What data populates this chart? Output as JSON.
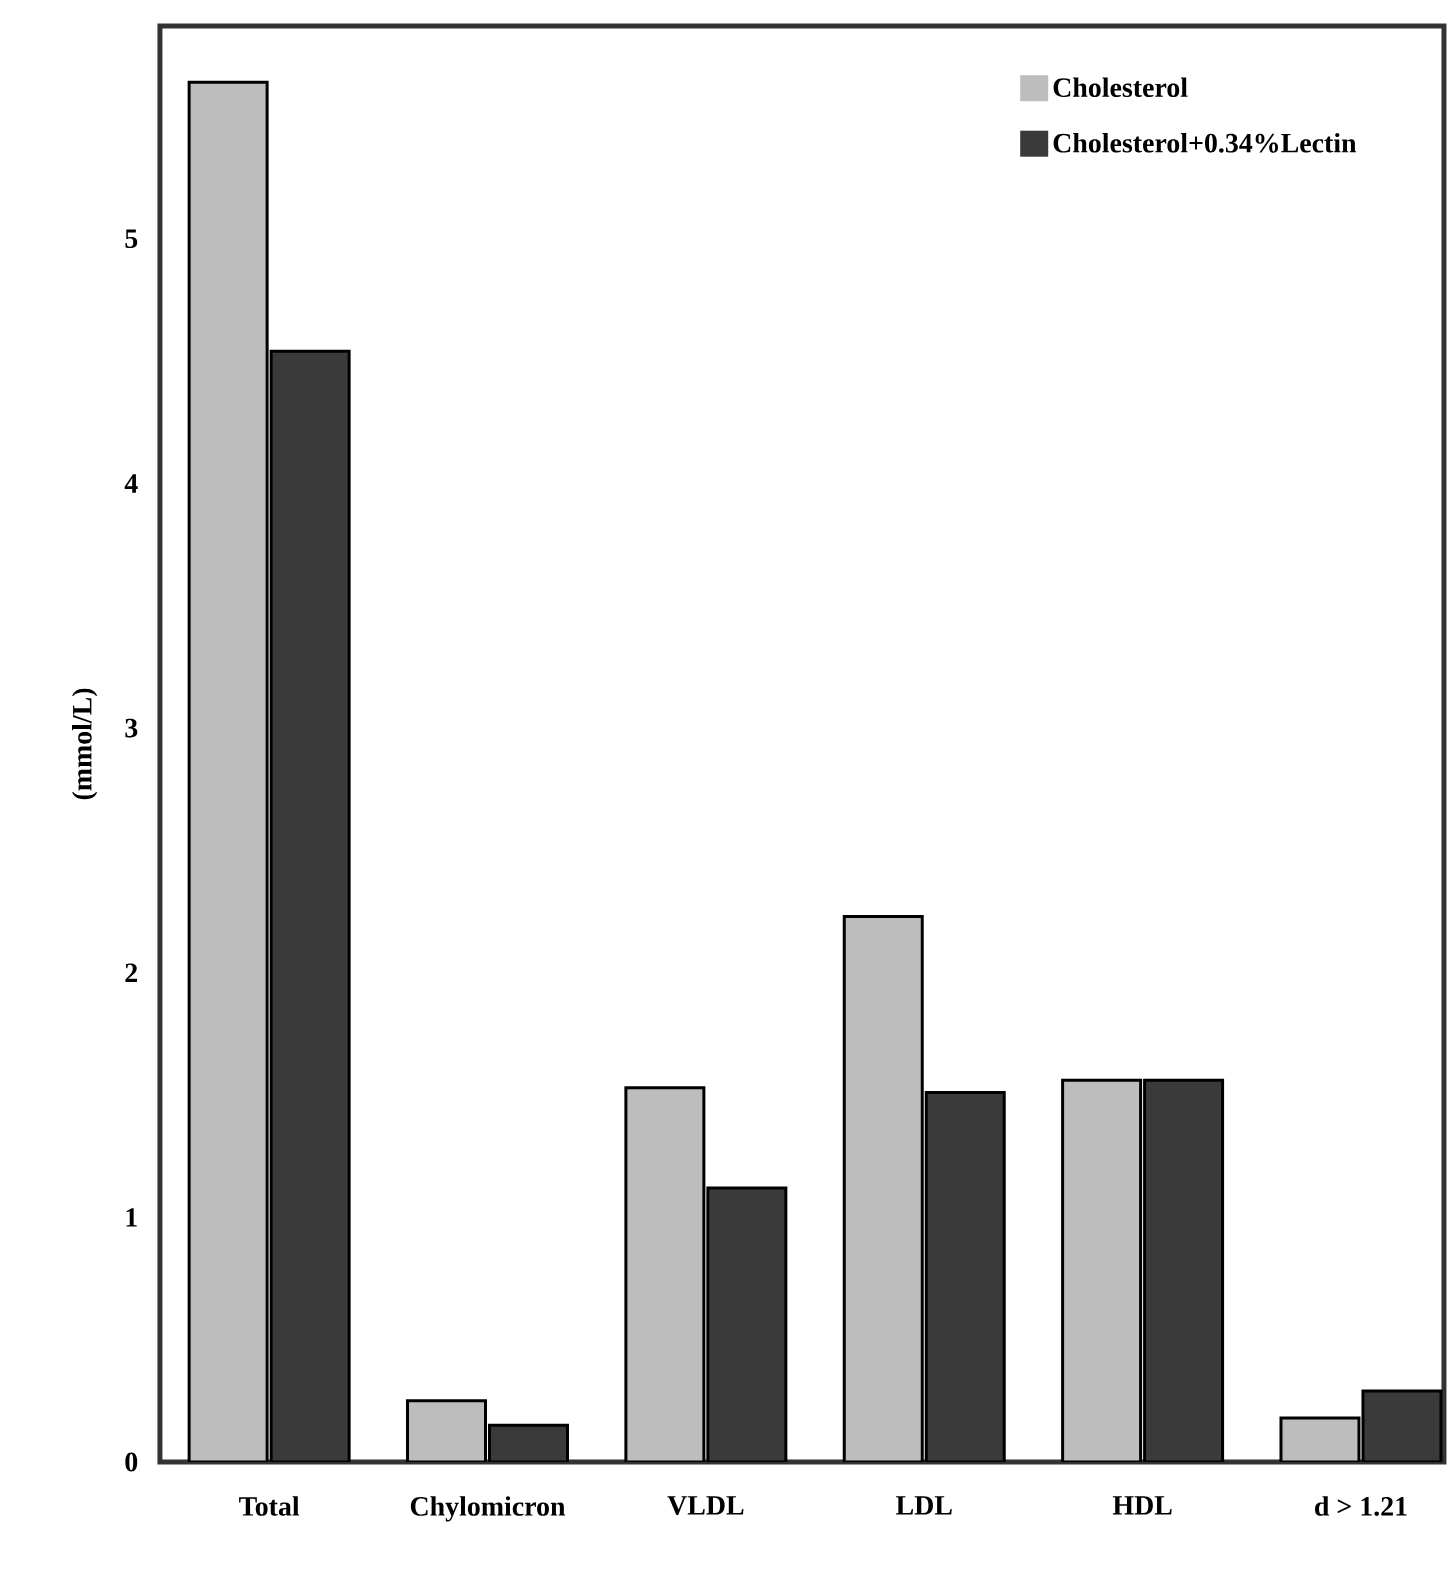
{
  "chart_data": {
    "type": "bar",
    "ylabel": "(mmol/L)",
    "categories": [
      "Total",
      "Chylomicron",
      "VLDL",
      "LDL",
      "HDL",
      "d > 1.21"
    ],
    "series": [
      {
        "name": "Cholesterol",
        "color": "#bdbdbd",
        "values": [
          5.64,
          0.25,
          1.53,
          2.23,
          1.56,
          0.18
        ]
      },
      {
        "name": "Cholesterol+0.34%Lectin",
        "color": "#3a3a3a",
        "values": [
          4.54,
          0.15,
          1.12,
          1.51,
          1.56,
          0.29
        ]
      }
    ],
    "ylim": [
      0,
      5.87
    ],
    "yticks": [
      0,
      1,
      2,
      3,
      4,
      5
    ],
    "legend": "top right",
    "grid": false
  }
}
